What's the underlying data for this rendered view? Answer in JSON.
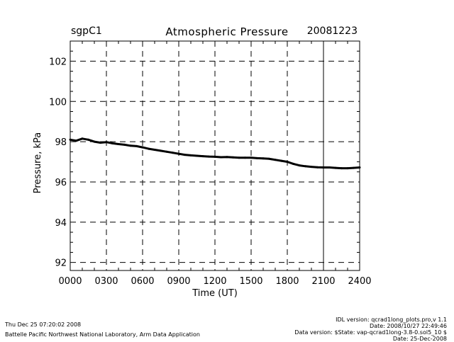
{
  "header": {
    "site": "sgpC1",
    "title": "Atmospheric Pressure",
    "date": "20081223"
  },
  "footer": {
    "timestamp": "Thu Dec 25 07:20:02 2008",
    "lab": "Battelle Pacific Northwest National Laboratory, Arm Data Application",
    "idl_version": "IDL version: qcrad1long_plots.pro,v 1.1",
    "idl_date": "Date: 2008/10/27 22:49:46",
    "data_version": "Data version: $State: vap-qcrad1long-3.8-0.sol5_10 $",
    "data_date": "Date: 25-Dec-2008"
  },
  "chart_data": {
    "type": "line",
    "title": "Atmospheric Pressure",
    "xlabel": "Time (UT)",
    "ylabel": "Pressure, kPa",
    "xlim": [
      0,
      24
    ],
    "ylim": [
      91.6,
      103.0
    ],
    "x_ticks": [
      0,
      3,
      6,
      9,
      12,
      15,
      18,
      21,
      24
    ],
    "x_tick_labels": [
      "0000",
      "0300",
      "0600",
      "0900",
      "1200",
      "1500",
      "1800",
      "2100",
      "2400"
    ],
    "y_ticks": [
      92,
      94,
      96,
      98,
      100,
      102
    ],
    "y_tick_labels": [
      "92",
      "94",
      "96",
      "98",
      "100",
      "102"
    ],
    "grid": "dashed",
    "series": [
      {
        "color": "#000000",
        "x": [
          0,
          0.5,
          1.0,
          1.5,
          2.0,
          2.5,
          3.0,
          3.5,
          4.0,
          4.5,
          5.0,
          5.5,
          6.0,
          6.5,
          7.0,
          7.5,
          8.0,
          8.5,
          9.0,
          9.5,
          10.0,
          10.5,
          11.0,
          11.5,
          12.0,
          12.5,
          13.0,
          13.5,
          14.0,
          14.5,
          15.0,
          15.5,
          16.0,
          16.5,
          17.0,
          17.5,
          18.0,
          18.5,
          19.0,
          19.5,
          20.0,
          20.5,
          21.0,
          21.5,
          22.0,
          22.5,
          23.0,
          23.5,
          24.0
        ],
        "y": [
          98.1,
          98.05,
          98.15,
          98.1,
          98.0,
          97.95,
          97.98,
          97.92,
          97.88,
          97.85,
          97.8,
          97.78,
          97.72,
          97.65,
          97.6,
          97.55,
          97.5,
          97.45,
          97.4,
          97.35,
          97.32,
          97.3,
          97.28,
          97.26,
          97.25,
          97.23,
          97.24,
          97.22,
          97.2,
          97.2,
          97.2,
          97.18,
          97.17,
          97.15,
          97.1,
          97.05,
          97.0,
          96.9,
          96.82,
          96.78,
          96.75,
          96.73,
          96.72,
          96.72,
          96.7,
          96.68,
          96.68,
          96.7,
          96.72
        ]
      }
    ]
  }
}
